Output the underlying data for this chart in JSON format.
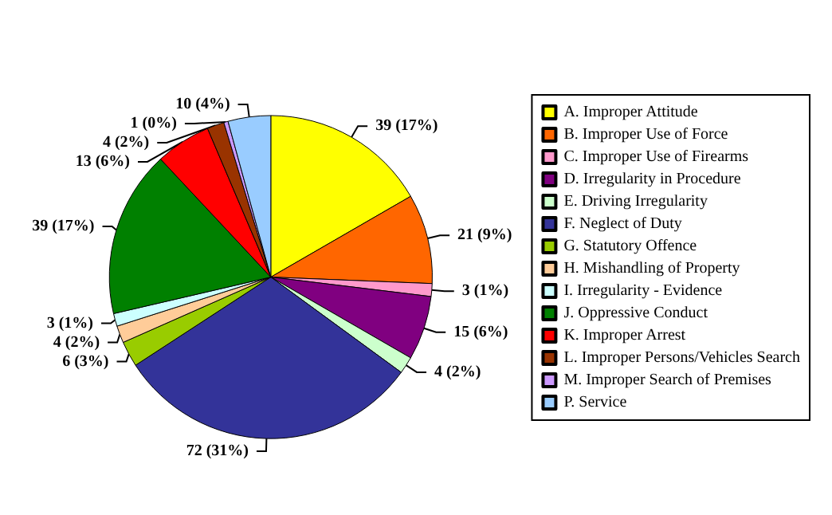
{
  "chart_data": {
    "type": "pie",
    "categories": [
      "A. Improper Attitude",
      "B. Improper Use of Force",
      "C. Improper Use of Firearms",
      "D. Irregularity in Procedure",
      "E. Driving Irregularity",
      "F. Neglect of Duty",
      "G. Statutory Offence",
      "H. Mishandling of Property",
      "I. Irregularity - Evidence",
      "J. Oppressive Conduct",
      "K. Improper Arrest",
      "L. Improper Persons/Vehicles Search",
      "M. Improper Search of Premises",
      "P. Service"
    ],
    "values": [
      39,
      21,
      3,
      15,
      4,
      72,
      6,
      4,
      3,
      39,
      13,
      4,
      1,
      10
    ],
    "value_labels": [
      "39 (17%)",
      "21 (9%)",
      "3 (1%)",
      "15 (6%)",
      "4 (2%)",
      "72 (31%)",
      "6 (3%)",
      "4 (2%)",
      "3 (1%)",
      "39 (17%)",
      "13 (6%)",
      "4 (2%)",
      "1 (0%)",
      "10 (4%)"
    ],
    "colors": [
      "#ffff00",
      "#ff6600",
      "#ff99cc",
      "#800080",
      "#ccffcc",
      "#333399",
      "#99cc00",
      "#ffcc99",
      "#ccffff",
      "#008000",
      "#ff0000",
      "#993300",
      "#cc99ff",
      "#99ccff"
    ],
    "legend": "right"
  }
}
